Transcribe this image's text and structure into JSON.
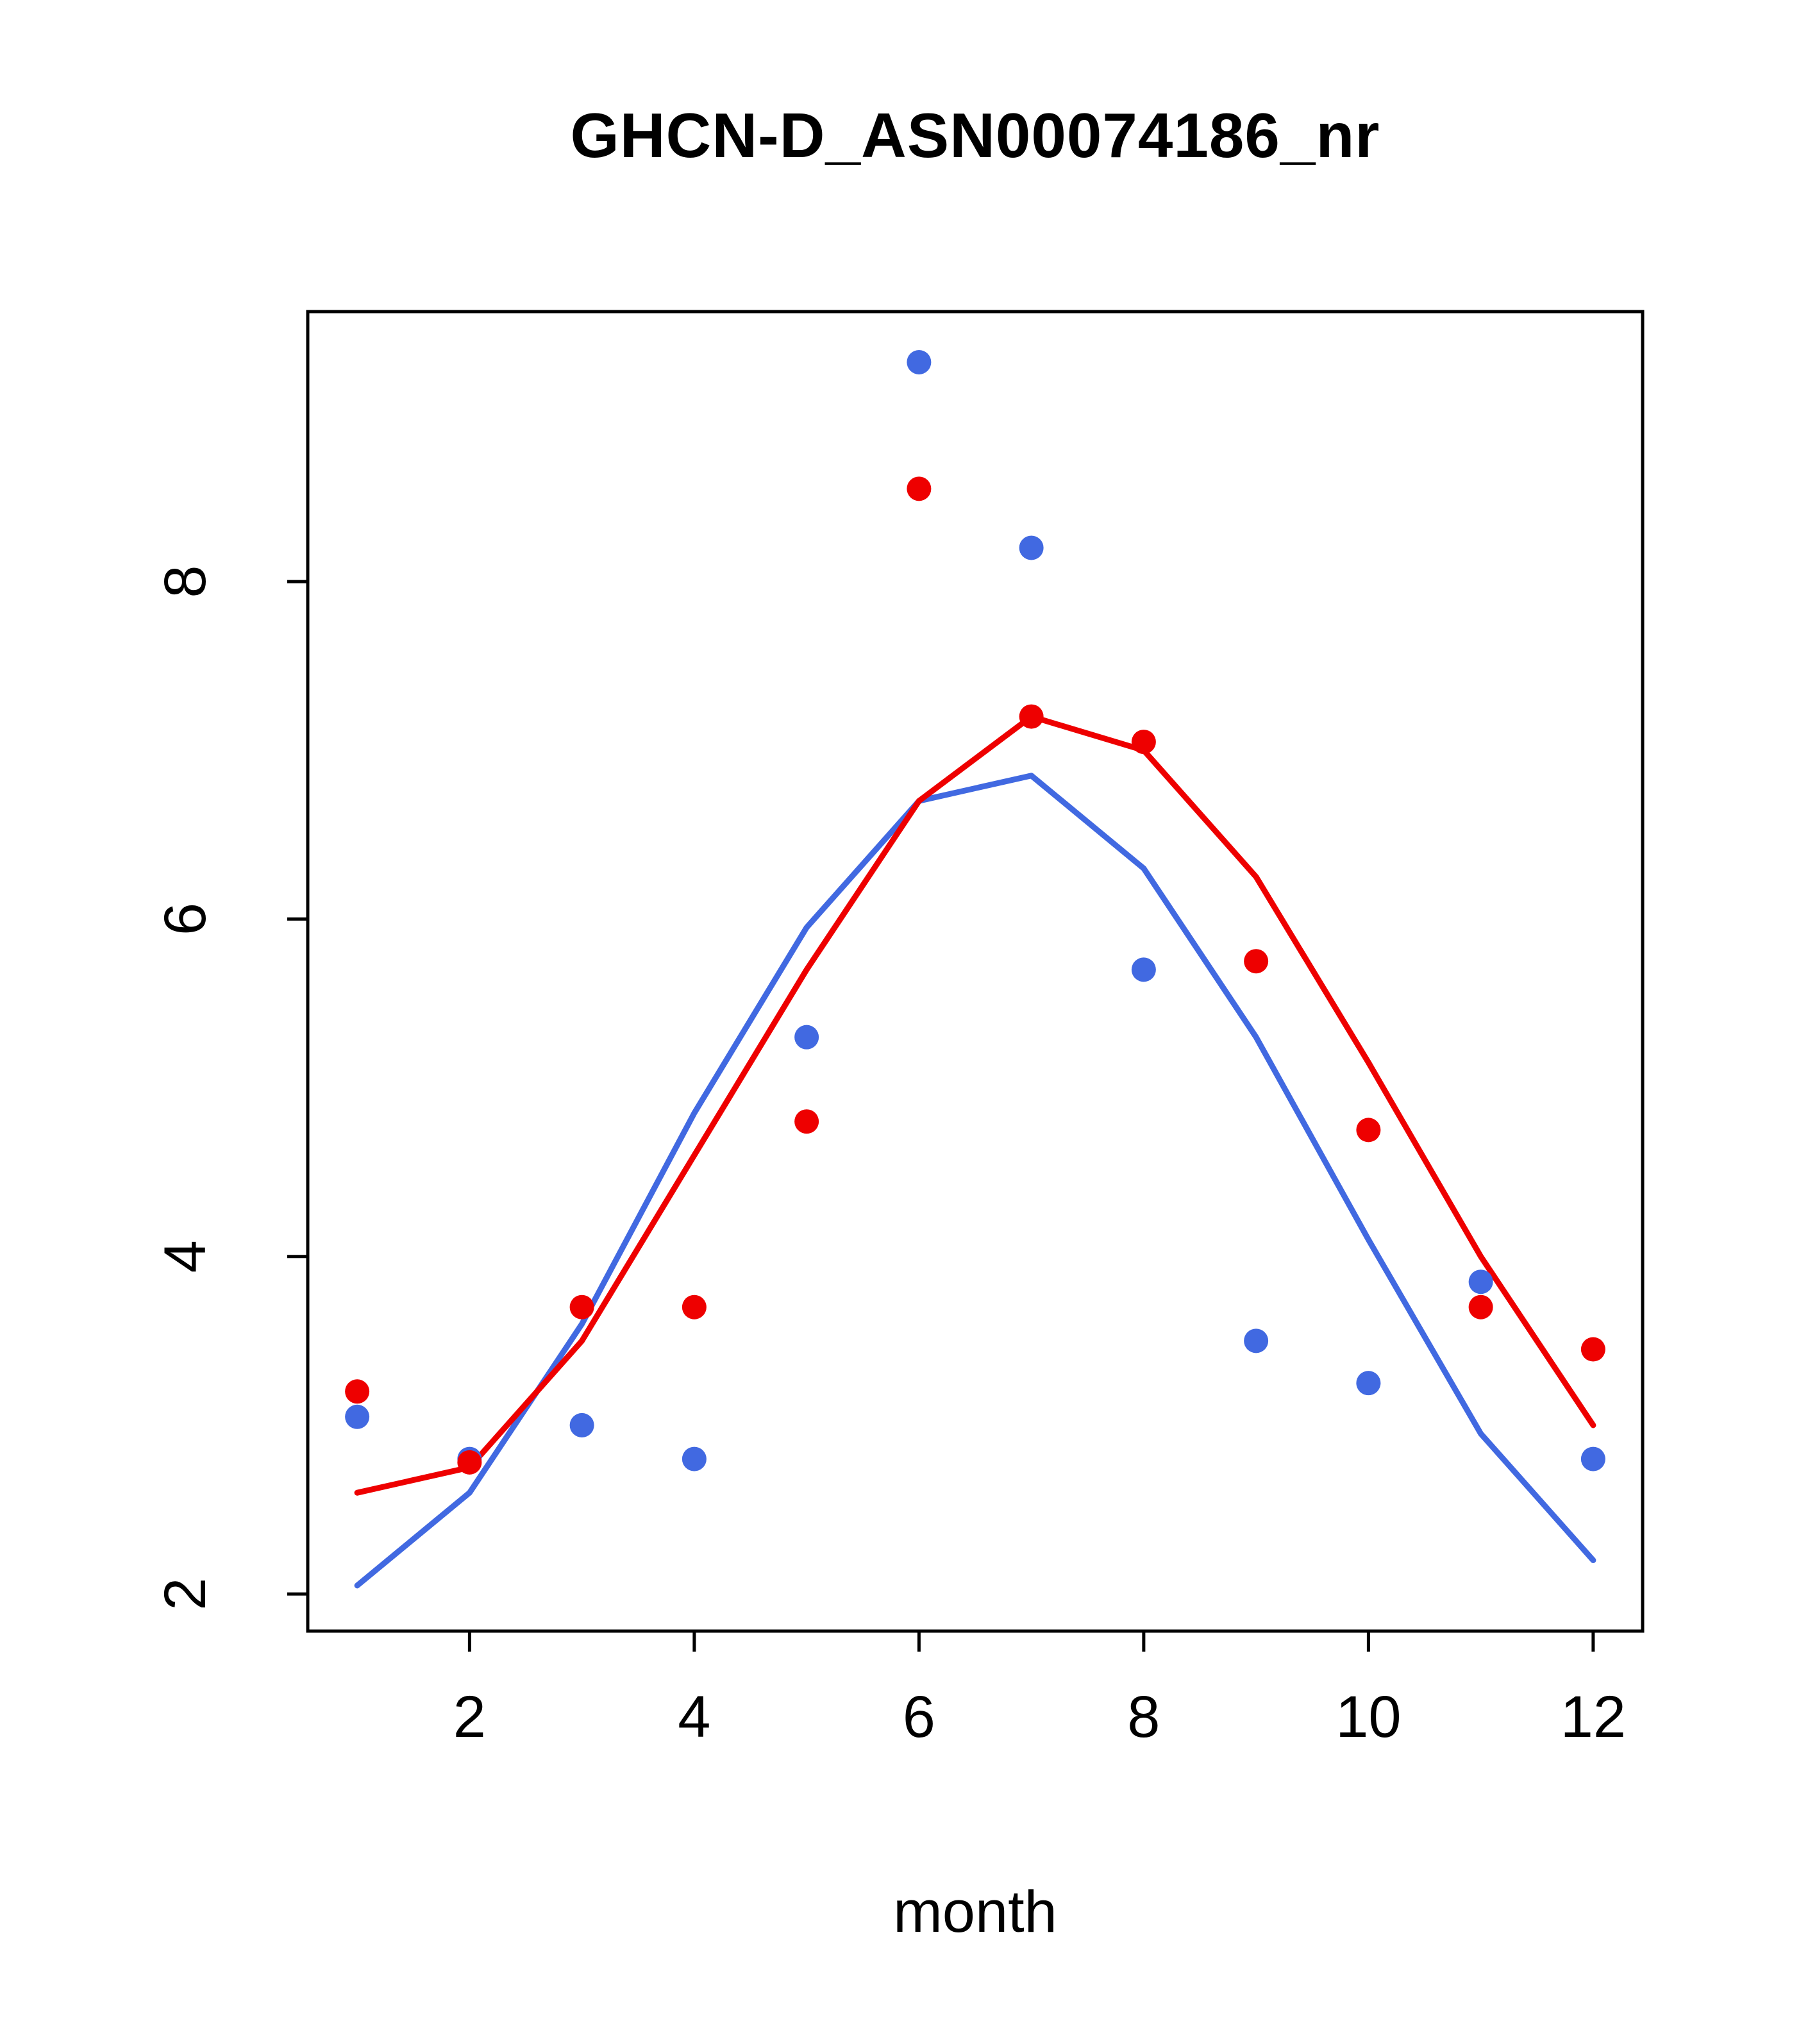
{
  "title": "GHCN-D_ASN00074186_nr",
  "chart_data": {
    "type": "scatter",
    "title": "GHCN-D_ASN00074186_nr",
    "xlabel": "month",
    "ylabel": "",
    "xlim": [
      0.56,
      12.44
    ],
    "ylim": [
      1.78,
      9.6
    ],
    "x_ticks": [
      2,
      4,
      6,
      8,
      10,
      12
    ],
    "y_ticks": [
      2,
      4,
      6,
      8
    ],
    "grid": false,
    "legend": null,
    "x": [
      1,
      2,
      3,
      4,
      5,
      6,
      7,
      8,
      9,
      10,
      11,
      12
    ],
    "series": [
      {
        "name": "blue-points",
        "type": "points",
        "color": "#4169E1",
        "values": [
          3.05,
          2.8,
          3.0,
          2.8,
          5.3,
          9.3,
          8.2,
          5.7,
          3.5,
          3.25,
          3.85,
          2.8
        ]
      },
      {
        "name": "red-points",
        "type": "points",
        "color": "#EE0000",
        "values": [
          3.2,
          2.78,
          3.7,
          3.7,
          4.8,
          8.55,
          7.2,
          7.05,
          5.75,
          4.75,
          3.7,
          3.45
        ]
      },
      {
        "name": "blue-line",
        "type": "line",
        "color": "#4169E1",
        "values": [
          2.05,
          2.6,
          3.6,
          4.85,
          5.95,
          6.7,
          6.85,
          6.3,
          5.3,
          4.1,
          2.95,
          2.2
        ]
      },
      {
        "name": "red-line",
        "type": "line",
        "color": "#EE0000",
        "values": [
          2.6,
          2.75,
          3.5,
          4.6,
          5.7,
          6.7,
          7.2,
          7.0,
          6.25,
          5.15,
          4.0,
          3.0
        ]
      }
    ]
  }
}
